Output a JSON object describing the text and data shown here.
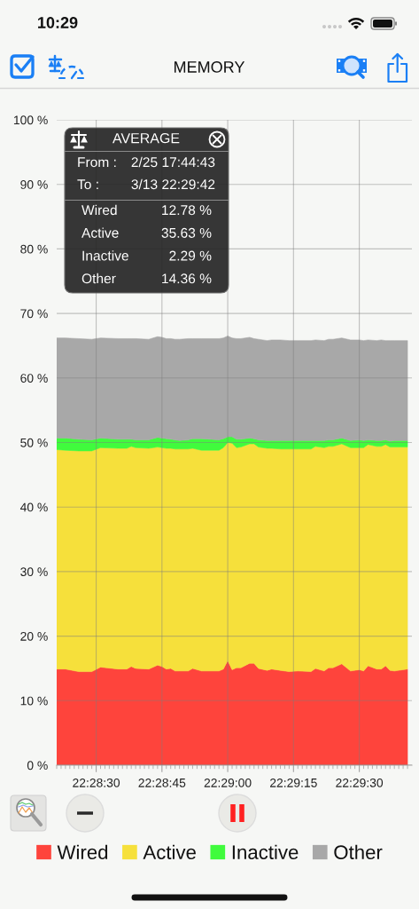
{
  "chart_data": {
    "type": "area",
    "title": "MEMORY",
    "stacked": true,
    "x": [
      22.4725,
      22.473056,
      22.473889,
      22.474722,
      22.475278,
      22.476389,
      22.476944,
      22.477222,
      22.4775,
      22.478333,
      22.478889,
      22.479167,
      22.479444,
      22.479722,
      22.48,
      22.480278,
      22.480833,
      22.481111,
      22.481667,
      22.482778,
      22.483056,
      22.483333,
      22.483611,
      22.483889,
      22.484167,
      22.484722,
      22.485,
      22.485278,
      22.485833,
      22.486111,
      22.486667,
      22.487222,
      22.487778,
      22.488611,
      22.488889,
      22.489444,
      22.489722,
      22.49,
      22.490556,
      22.491111,
      22.491667,
      22.491944,
      22.492222,
      22.492778,
      22.493056,
      22.493333,
      22.493611,
      22.493889,
      22.494722
    ],
    "series": [
      {
        "name": "Wired",
        "color": "#fe443c",
        "values": [
          14.9,
          14.9,
          14.5,
          14.5,
          15.2,
          14.9,
          14.9,
          15.3,
          15.0,
          14.9,
          15.5,
          15.3,
          14.9,
          15.0,
          14.6,
          14.6,
          14.6,
          15.0,
          14.6,
          14.6,
          14.9,
          16.2,
          14.8,
          15.1,
          15.1,
          15.8,
          15.8,
          15.0,
          14.7,
          14.9,
          14.7,
          14.5,
          14.6,
          14.5,
          15.0,
          14.6,
          15.1,
          15.1,
          15.7,
          14.6,
          14.8,
          14.6,
          15.4,
          14.9,
          14.9,
          15.4,
          14.7,
          14.6,
          14.9
        ]
      },
      {
        "name": "Active",
        "color": "#f6e03b",
        "values": [
          34.0,
          33.9,
          34.2,
          34.2,
          34.0,
          34.2,
          34.2,
          34.1,
          34.2,
          34.2,
          33.8,
          33.9,
          34.2,
          34.1,
          34.4,
          34.4,
          34.4,
          34.1,
          34.2,
          34.2,
          34.3,
          33.8,
          35.1,
          34.1,
          34.2,
          34.0,
          34.0,
          34.3,
          34.4,
          34.2,
          34.3,
          34.5,
          34.4,
          34.5,
          34.4,
          34.6,
          34.3,
          34.3,
          34.1,
          34.6,
          34.4,
          34.6,
          34.3,
          34.5,
          34.5,
          34.3,
          34.6,
          34.7,
          34.4
        ]
      },
      {
        "name": "Inactive",
        "color": "#40fb3d",
        "values": [
          1.8,
          1.9,
          1.8,
          1.7,
          1.5,
          1.4,
          1.4,
          1.1,
          1.2,
          1.3,
          1.5,
          1.5,
          1.5,
          1.4,
          1.4,
          1.3,
          1.4,
          1.5,
          1.8,
          1.6,
          1.4,
          0.9,
          1.0,
          1.3,
          1.2,
          0.9,
          0.8,
          1.1,
          1.2,
          1.2,
          1.3,
          1.3,
          1.3,
          1.3,
          0.9,
          1.1,
          1.0,
          1.0,
          0.9,
          1.1,
          1.2,
          1.1,
          0.7,
          0.9,
          0.9,
          0.7,
          0.9,
          1.0,
          1.0
        ]
      },
      {
        "name": "Other",
        "color": "#a8a8a8",
        "values": [
          15.5,
          15.5,
          15.6,
          15.6,
          15.5,
          15.6,
          15.6,
          15.6,
          15.7,
          15.6,
          15.6,
          15.6,
          15.5,
          15.6,
          15.6,
          15.7,
          15.7,
          15.5,
          15.5,
          15.7,
          15.6,
          15.6,
          15.3,
          15.6,
          15.6,
          15.6,
          15.5,
          15.6,
          15.5,
          15.6,
          15.6,
          15.5,
          15.5,
          15.5,
          15.6,
          15.5,
          15.6,
          15.6,
          15.5,
          15.6,
          15.5,
          15.5,
          15.5,
          15.5,
          15.6,
          15.4,
          15.6,
          15.5,
          15.5
        ]
      }
    ],
    "xlim": [
      22.4725,
      22.495
    ],
    "xticks": [
      {
        "value": 22.4725,
        "label": null
      },
      {
        "value": 22.472778,
        "label": null
      },
      {
        "value": 22.473056,
        "label": null
      },
      {
        "value": 22.473333,
        "label": null
      },
      {
        "value": 22.473611,
        "label": null
      },
      {
        "value": 22.473889,
        "label": null
      },
      {
        "value": 22.474167,
        "label": null
      },
      {
        "value": 22.474444,
        "label": null
      },
      {
        "value": 22.474722,
        "label": null
      },
      {
        "value": 22.475,
        "label": "22:28:30"
      },
      {
        "value": 22.475278,
        "label": null
      },
      {
        "value": 22.475556,
        "label": null
      },
      {
        "value": 22.475833,
        "label": null
      },
      {
        "value": 22.476111,
        "label": null
      },
      {
        "value": 22.476389,
        "label": null
      },
      {
        "value": 22.476667,
        "label": null
      },
      {
        "value": 22.476944,
        "label": null
      },
      {
        "value": 22.477222,
        "label": null
      },
      {
        "value": 22.4775,
        "label": null
      },
      {
        "value": 22.477778,
        "label": null
      },
      {
        "value": 22.478056,
        "label": null
      },
      {
        "value": 22.478333,
        "label": null
      },
      {
        "value": 22.478611,
        "label": null
      },
      {
        "value": 22.478889,
        "label": null
      },
      {
        "value": 22.479167,
        "label": "22:28:45"
      },
      {
        "value": 22.479444,
        "label": null
      },
      {
        "value": 22.479722,
        "label": null
      },
      {
        "value": 22.48,
        "label": null
      },
      {
        "value": 22.480278,
        "label": null
      },
      {
        "value": 22.480556,
        "label": null
      },
      {
        "value": 22.480833,
        "label": null
      },
      {
        "value": 22.481111,
        "label": null
      },
      {
        "value": 22.481389,
        "label": null
      },
      {
        "value": 22.481667,
        "label": null
      },
      {
        "value": 22.481944,
        "label": null
      },
      {
        "value": 22.482222,
        "label": null
      },
      {
        "value": 22.4825,
        "label": null
      },
      {
        "value": 22.482778,
        "label": null
      },
      {
        "value": 22.483056,
        "label": null
      },
      {
        "value": 22.483333,
        "label": "22:29:00"
      },
      {
        "value": 22.483611,
        "label": null
      },
      {
        "value": 22.483889,
        "label": null
      },
      {
        "value": 22.484167,
        "label": null
      },
      {
        "value": 22.484444,
        "label": null
      },
      {
        "value": 22.484722,
        "label": null
      },
      {
        "value": 22.485,
        "label": null
      },
      {
        "value": 22.485278,
        "label": null
      },
      {
        "value": 22.485556,
        "label": null
      },
      {
        "value": 22.485833,
        "label": null
      },
      {
        "value": 22.486111,
        "label": null
      },
      {
        "value": 22.486389,
        "label": null
      },
      {
        "value": 22.486667,
        "label": null
      },
      {
        "value": 22.486944,
        "label": null
      },
      {
        "value": 22.487222,
        "label": null
      },
      {
        "value": 22.4875,
        "label": "22:29:15"
      },
      {
        "value": 22.487778,
        "label": null
      },
      {
        "value": 22.488056,
        "label": null
      },
      {
        "value": 22.488333,
        "label": null
      },
      {
        "value": 22.488611,
        "label": null
      },
      {
        "value": 22.488889,
        "label": null
      },
      {
        "value": 22.489167,
        "label": null
      },
      {
        "value": 22.489444,
        "label": null
      },
      {
        "value": 22.489722,
        "label": null
      },
      {
        "value": 22.49,
        "label": null
      },
      {
        "value": 22.490278,
        "label": null
      },
      {
        "value": 22.490556,
        "label": null
      },
      {
        "value": 22.490833,
        "label": null
      },
      {
        "value": 22.491111,
        "label": null
      },
      {
        "value": 22.491389,
        "label": null
      },
      {
        "value": 22.491667,
        "label": "22:29:30"
      },
      {
        "value": 22.491944,
        "label": null
      },
      {
        "value": 22.492222,
        "label": null
      },
      {
        "value": 22.4925,
        "label": null
      },
      {
        "value": 22.492778,
        "label": null
      },
      {
        "value": 22.493056,
        "label": null
      },
      {
        "value": 22.493333,
        "label": null
      },
      {
        "value": 22.493611,
        "label": null
      },
      {
        "value": 22.493889,
        "label": null
      },
      {
        "value": 22.494167,
        "label": null
      },
      {
        "value": 22.494444,
        "label": null
      },
      {
        "value": 22.494722,
        "label": null
      }
    ],
    "ylim": [
      0,
      100
    ],
    "yticks": [
      {
        "value": 0,
        "label": "0 %"
      },
      {
        "value": 10,
        "label": "10 %"
      },
      {
        "value": 20,
        "label": "20 %"
      },
      {
        "value": 30,
        "label": "30 %"
      },
      {
        "value": 40,
        "label": "40 %"
      },
      {
        "value": 50,
        "label": "50 %"
      },
      {
        "value": 60,
        "label": "60 %"
      },
      {
        "value": 70,
        "label": "70 %"
      },
      {
        "value": 80,
        "label": "80 %"
      },
      {
        "value": 90,
        "label": "90 %"
      },
      {
        "value": 100,
        "label": "100 %"
      }
    ],
    "grid": true,
    "legend": "bottom",
    "annotations": [
      "10:29",
      "AVERAGE",
      "From :",
      "2/25 17:44:43",
      "To :",
      "3/13 22:29:42",
      "Wired",
      "12.78 %",
      "Active",
      "35.63 %",
      "Inactive",
      "2.29 %",
      "Other",
      "14.36 %"
    ]
  }
}
